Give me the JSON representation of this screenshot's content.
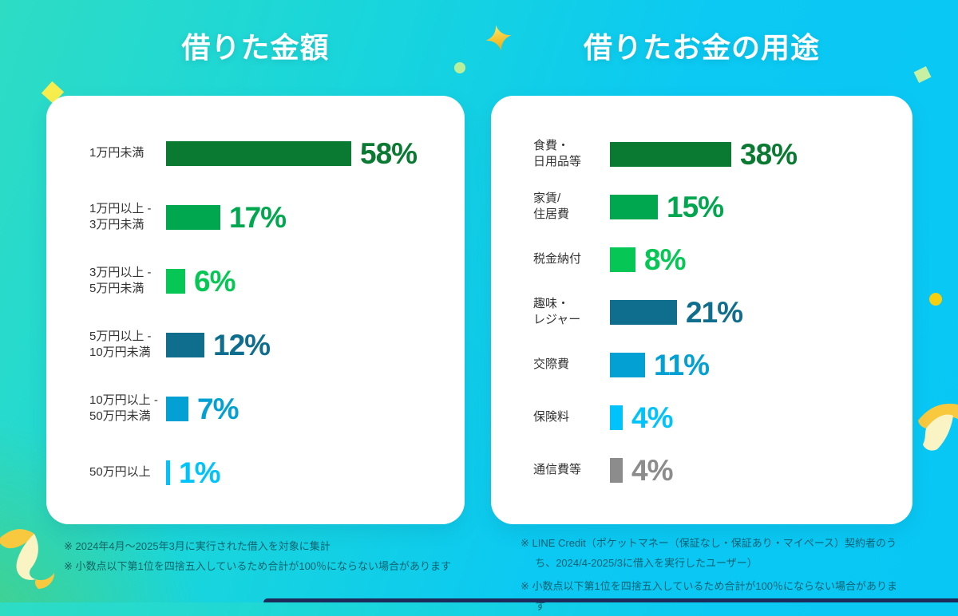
{
  "page": {
    "background": {
      "gradient_left": "#2edcc4",
      "gradient_mid": "#1ad6da",
      "gradient_right": "#09c7f5",
      "corner_green": "#46cf83"
    },
    "bottom_strip_color": "#1c2b5a"
  },
  "charts": [
    {
      "title": "借りた金額",
      "unit": "%",
      "rows": [
        {
          "label_lines": [
            "1万円未満"
          ],
          "value": 58,
          "display": "58%",
          "color": "#0a7a33"
        },
        {
          "label_lines": [
            "1万円以上 -",
            "3万円未満"
          ],
          "value": 17,
          "display": "17%",
          "color": "#00a74e"
        },
        {
          "label_lines": [
            "3万円以上 -",
            "5万円未満"
          ],
          "value": 6,
          "display": "6%",
          "color": "#06c755"
        },
        {
          "label_lines": [
            "5万円以上 -",
            "10万円未満"
          ],
          "value": 12,
          "display": "12%",
          "color": "#0f6e8d"
        },
        {
          "label_lines": [
            "10万円以上 -",
            "50万円未満"
          ],
          "value": 7,
          "display": "7%",
          "color": "#03a0d4"
        },
        {
          "label_lines": [
            "50万円以上"
          ],
          "value": 1,
          "display": "1%",
          "color": "#00c3fb"
        }
      ],
      "footnotes": [
        "※ 2024年4月〜2025年3月に実行された借入を対象に集計",
        "※ 小数点以下第1位を四捨五入しているため合計が100％にならない場合があります"
      ]
    },
    {
      "title": "借りたお金の用途",
      "unit": "%",
      "rows": [
        {
          "label_lines": [
            "食費・",
            "日用品等"
          ],
          "value": 38,
          "display": "38%",
          "color": "#0a7a33"
        },
        {
          "label_lines": [
            "家賃/",
            "住居費"
          ],
          "value": 15,
          "display": "15%",
          "color": "#00a74e"
        },
        {
          "label_lines": [
            "税金納付"
          ],
          "value": 8,
          "display": "8%",
          "color": "#06c755"
        },
        {
          "label_lines": [
            "趣味・",
            "レジャー"
          ],
          "value": 21,
          "display": "21%",
          "color": "#0f6e8d"
        },
        {
          "label_lines": [
            "交際費"
          ],
          "value": 11,
          "display": "11%",
          "color": "#03a0d4"
        },
        {
          "label_lines": [
            "保険料"
          ],
          "value": 4,
          "display": "4%",
          "color": "#00c3fb"
        },
        {
          "label_lines": [
            "通信費等"
          ],
          "value": 4,
          "display": "4%",
          "color": "#8c8c8c"
        }
      ],
      "footnotes": [
        "※ LINE Credit（ポケットマネー（保証なし・保証あり・マイペース）契約者のうち、2024/4-2025/3に借入を実行したユーザー）",
        "※ 小数点以下第1位を四捨五入しているため合計が100％にならない場合があります"
      ]
    }
  ],
  "chart_data": [
    {
      "type": "bar",
      "orientation": "horizontal",
      "title": "借りた金額",
      "categories": [
        "1万円未満",
        "1万円以上 - 3万円未満",
        "3万円以上 - 5万円未満",
        "5万円以上 - 10万円未満",
        "10万円以上 - 50万円未満",
        "50万円以上"
      ],
      "values": [
        58,
        17,
        6,
        12,
        7,
        1
      ],
      "unit": "%",
      "data_labels": [
        "58%",
        "17%",
        "6%",
        "12%",
        "7%",
        "1%"
      ],
      "bar_colors": [
        "#0a7a33",
        "#00a74e",
        "#06c755",
        "#0f6e8d",
        "#03a0d4",
        "#00c3fb"
      ],
      "xlim": [
        0,
        100
      ],
      "grid": false,
      "legend": false
    },
    {
      "type": "bar",
      "orientation": "horizontal",
      "title": "借りたお金の用途",
      "categories": [
        "食費・日用品等",
        "家賃/住居費",
        "税金納付",
        "趣味・レジャー",
        "交際費",
        "保険料",
        "通信費等"
      ],
      "values": [
        38,
        15,
        8,
        21,
        11,
        4,
        4
      ],
      "unit": "%",
      "data_labels": [
        "38%",
        "15%",
        "8%",
        "21%",
        "11%",
        "4%",
        "4%"
      ],
      "bar_colors": [
        "#0a7a33",
        "#00a74e",
        "#06c755",
        "#0f6e8d",
        "#03a0d4",
        "#00c3fb",
        "#8c8c8c"
      ],
      "xlim": [
        0,
        100
      ],
      "grid": false,
      "legend": false
    }
  ],
  "decorations": {
    "confetti_diamond_color": "#f7ee4e",
    "dot_green_color": "#b9ef9a",
    "square_green_color": "#c7f0a2",
    "dot_yellow_color": "#f6cf0e",
    "sparkle_color_top": "#ffe763",
    "sparkle_color_bottom": "#eca912",
    "ribbon_yellow": "#f8c93e",
    "ribbon_cream": "#faf3c3"
  }
}
